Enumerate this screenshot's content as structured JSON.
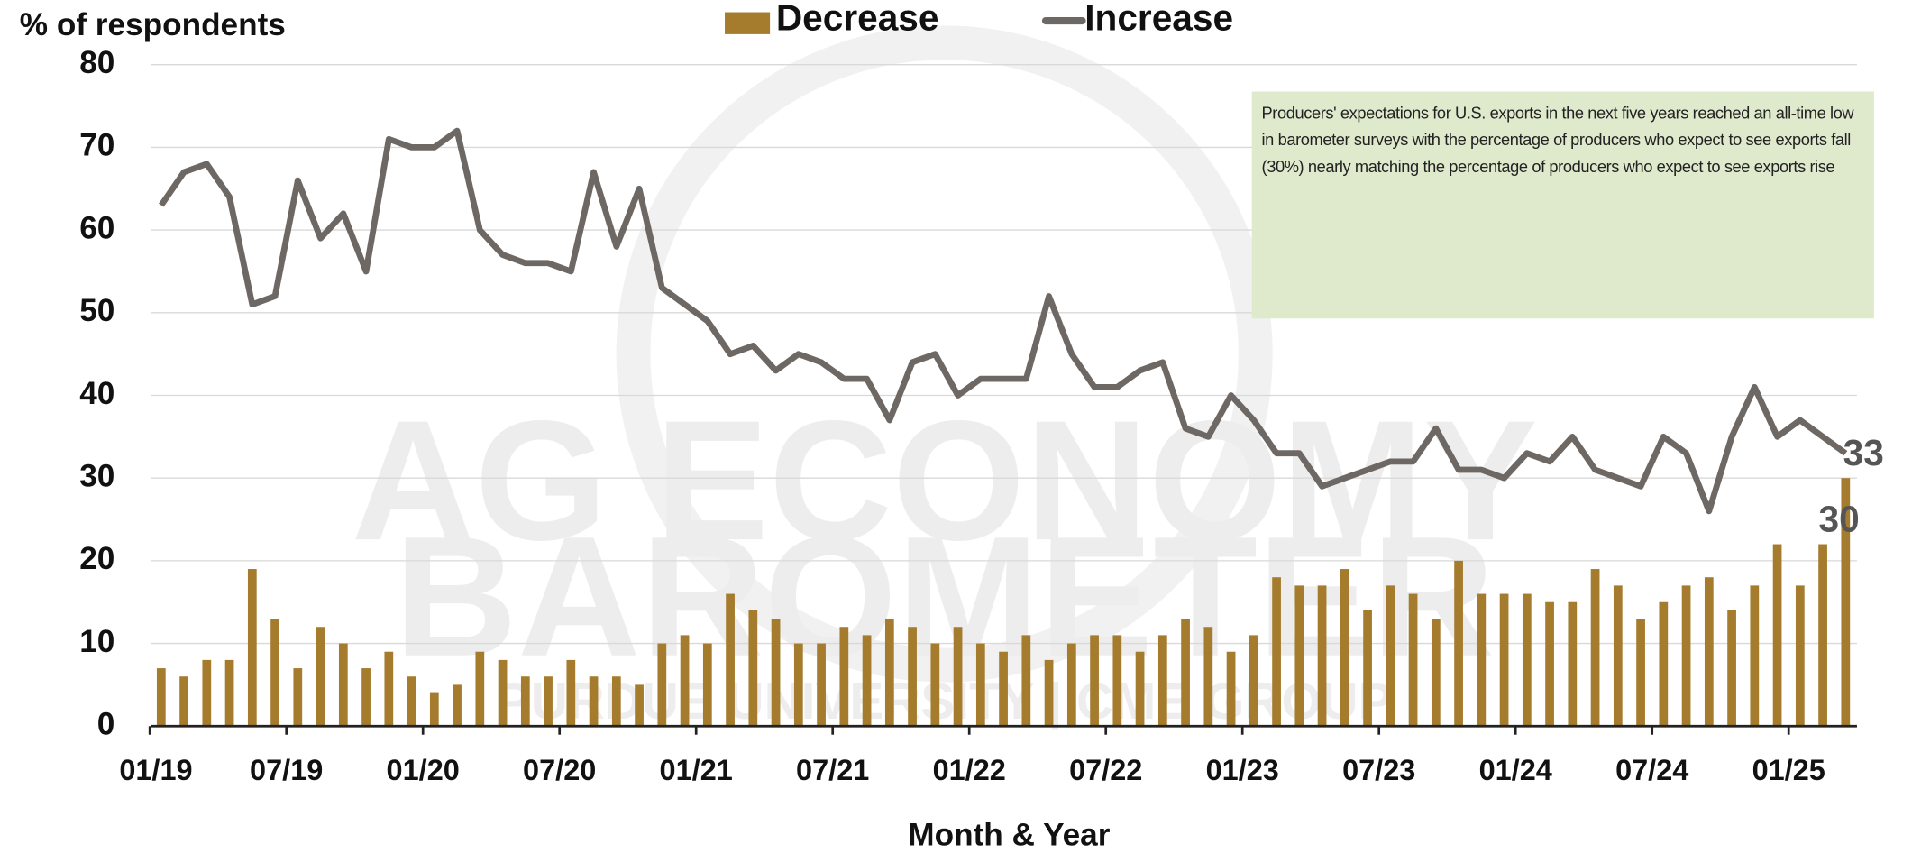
{
  "chart_data": {
    "type": "bar_line",
    "y_label": "% of respondents",
    "x_label": "Month & Year",
    "annotation": "Producers' expectations for U.S. exports in the next five years reached an all-time low in barometer surveys with the percentage of producers who expect to see exports fall (30%) nearly matching the percentage of producers who expect to see exports rise",
    "watermark": [
      "AG ECONOMY",
      "BAROMETER",
      "PURDUE UNIVERSITY | CME GROUP"
    ],
    "categories": [
      "01/19",
      null,
      null,
      null,
      null,
      null,
      "07/19",
      null,
      null,
      null,
      null,
      null,
      "01/20",
      null,
      null,
      null,
      null,
      null,
      "07/20",
      null,
      null,
      null,
      null,
      null,
      "01/21",
      null,
      null,
      null,
      null,
      null,
      "07/21",
      null,
      null,
      null,
      null,
      null,
      "01/22",
      null,
      null,
      null,
      null,
      null,
      "07/22",
      null,
      null,
      null,
      null,
      null,
      "01/23",
      null,
      null,
      null,
      null,
      null,
      "07/23",
      null,
      null,
      null,
      null,
      null,
      "01/24",
      null,
      null,
      null,
      null,
      null,
      "07/24",
      null,
      null,
      null,
      null,
      null,
      "01/25",
      null,
      null
    ],
    "series": [
      {
        "name": "Decrease",
        "color": "#a57c2e",
        "kind": "bar",
        "values": [
          7,
          6,
          8,
          8,
          19,
          13,
          7,
          12,
          10,
          7,
          9,
          6,
          4,
          5,
          9,
          8,
          6,
          6,
          8,
          6,
          6,
          5,
          10,
          11,
          10,
          16,
          14,
          13,
          10,
          10,
          12,
          11,
          13,
          12,
          10,
          12,
          10,
          9,
          11,
          8,
          10,
          11,
          11,
          9,
          11,
          13,
          12,
          9,
          11,
          18,
          17,
          17,
          19,
          14,
          17,
          16,
          13,
          20,
          16,
          16,
          16,
          15,
          15,
          19,
          17,
          13,
          15,
          17,
          18,
          14,
          17,
          22,
          17,
          22,
          30
        ]
      },
      {
        "name": "Increase",
        "color": "#6e6865",
        "kind": "line",
        "values": [
          63,
          67,
          68,
          64,
          51,
          52,
          66,
          59,
          62,
          55,
          71,
          70,
          70,
          72,
          60,
          57,
          56,
          56,
          55,
          67,
          58,
          65,
          53,
          51,
          49,
          45,
          46,
          43,
          45,
          44,
          42,
          42,
          37,
          44,
          45,
          40,
          42,
          42,
          42,
          52,
          45,
          41,
          41,
          43,
          44,
          36,
          35,
          40,
          37,
          33,
          33,
          29,
          30,
          31,
          32,
          32,
          36,
          31,
          31,
          30,
          33,
          32,
          35,
          31,
          30,
          29,
          35,
          33,
          26,
          35,
          41,
          35,
          37,
          35,
          33
        ]
      }
    ],
    "ylim": [
      0,
      80
    ],
    "yticks": [
      0,
      10,
      20,
      30,
      40,
      50,
      60,
      70,
      80
    ],
    "grid": true
  }
}
